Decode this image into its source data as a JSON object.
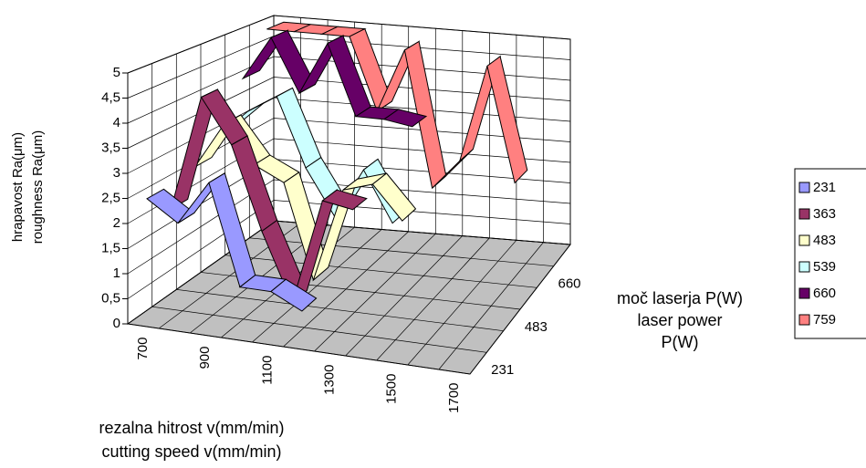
{
  "chart_data": {
    "type": "ribbon3d",
    "y_label_lines": [
      "hrapavost Ra(μm)",
      "roughness Ra(μm)"
    ],
    "x_label_lines": [
      "rezalna hitrost v(mm/min)",
      "cutting speed v(mm/min)"
    ],
    "depth_label_lines": [
      "moč laserja P(W)",
      "laser power",
      "P(W)"
    ],
    "categories": [
      "700",
      null,
      "900",
      null,
      "1100",
      null,
      "1300",
      null,
      "1500",
      null,
      "1700"
    ],
    "series": [
      {
        "name": "231",
        "color": "#9999ff",
        "values": [
          2.5,
          2.1,
          3.0,
          1.0,
          1.0,
          0.7,
          null,
          null,
          null,
          null,
          null
        ]
      },
      {
        "name": "363",
        "color": "#993366",
        "values": [
          2.0,
          4.4,
          3.5,
          1.8,
          0.4,
          2.6,
          2.5,
          null,
          null,
          null,
          null
        ]
      },
      {
        "name": "483",
        "color": "#ffffcc",
        "values": [
          2.6,
          3.6,
          2.8,
          2.5,
          0.5,
          2.5,
          2.7,
          2.0,
          null,
          null,
          null
        ]
      },
      {
        "name": "539",
        "color": "#ccffff",
        "values": [
          3.0,
          3.6,
          4.0,
          2.5,
          1.5,
          2.6,
          1.5,
          null,
          null,
          null,
          null
        ]
      },
      {
        "name": "660",
        "color": "#660066",
        "values": [
          4.0,
          5.0,
          3.8,
          5.0,
          3.4,
          3.4,
          3.3,
          null,
          null,
          null,
          null
        ]
      },
      {
        "name": "759",
        "color": "#ff8080",
        "values": [
          4.9,
          4.9,
          4.9,
          4.9,
          3.2,
          4.7,
          1.5,
          2.2,
          4.5,
          1.8,
          null
        ]
      }
    ],
    "depth_tick_series": [
      0,
      2,
      4
    ],
    "ylim": [
      0,
      5
    ],
    "yticks": [
      0,
      {
        "value": 0.5,
        "label": "0,5"
      },
      1,
      {
        "value": 1.5,
        "label": "1,5"
      },
      2,
      {
        "value": 2.5,
        "label": "2,5"
      },
      3,
      {
        "value": 3.5,
        "label": "3,5"
      },
      4,
      {
        "value": 4.5,
        "label": "4,5"
      },
      5
    ],
    "grid": true,
    "legend": "right"
  }
}
